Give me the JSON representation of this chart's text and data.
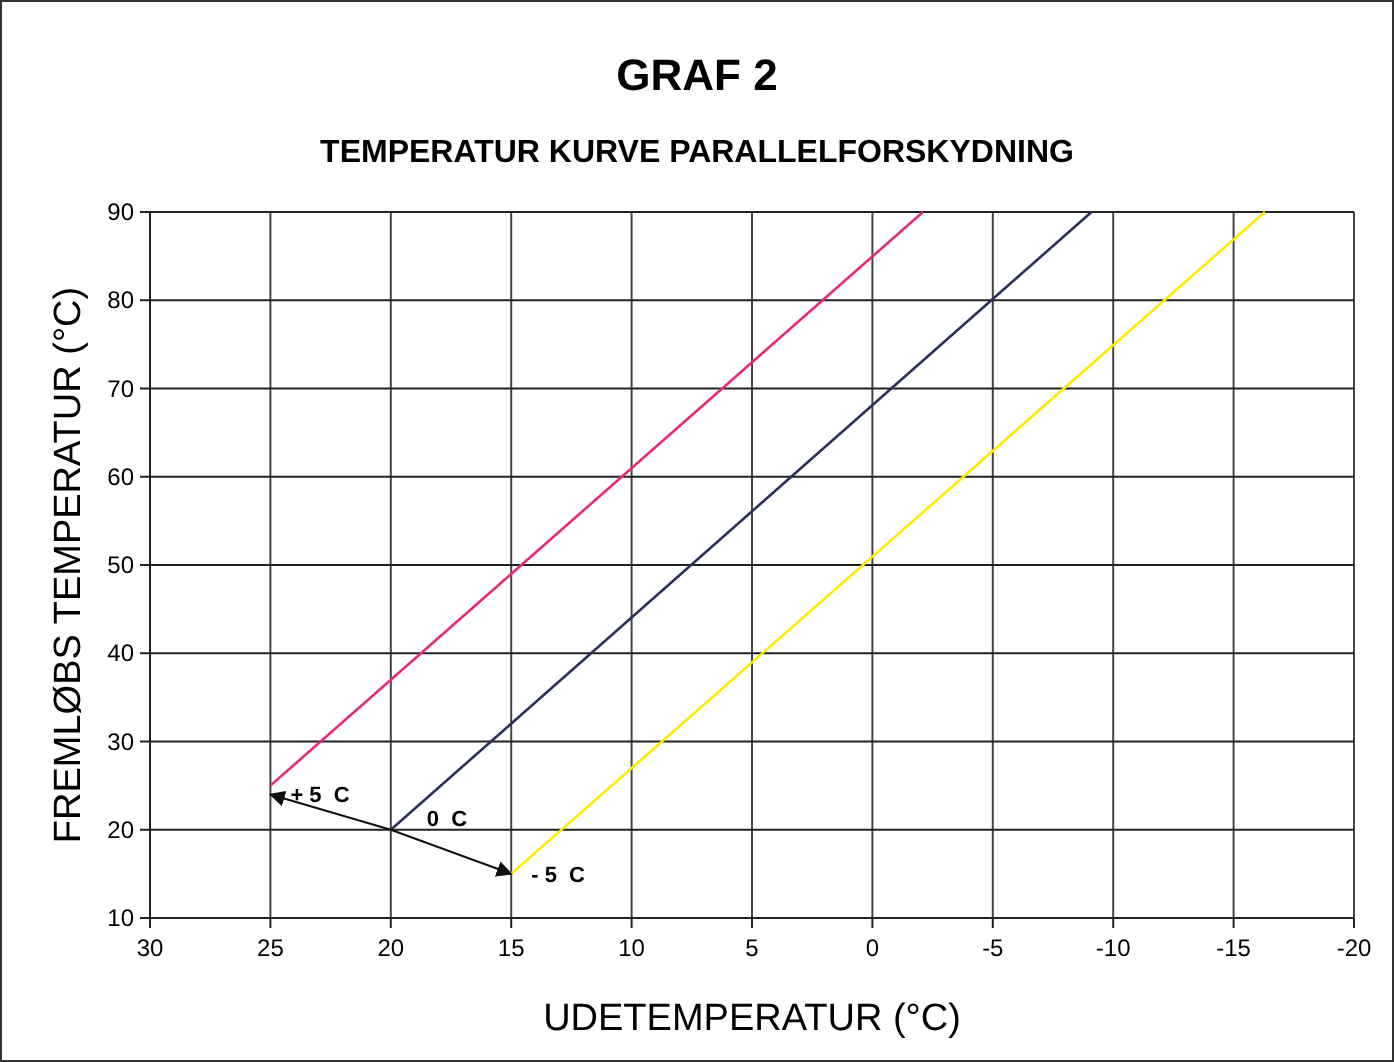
{
  "chart_data": {
    "type": "line",
    "title": "GRAF 2",
    "subtitle": "TEMPERATUR KURVE PARALLELFORSKYDNING",
    "xlabel": "UDETEMPERATUR (°C)",
    "ylabel": "FREMLØBS TEMPERATUR (°C)",
    "series": [
      {
        "color": "#e8297a",
        "x": [
          25,
          -2.1
        ],
        "values": [
          25,
          90
        ]
      },
      {
        "color": "#2b2f5c",
        "x": [
          20,
          -9.1
        ],
        "values": [
          20,
          90
        ]
      },
      {
        "color": "#ffea00",
        "x": [
          15,
          -16.3
        ],
        "values": [
          15,
          90
        ]
      }
    ],
    "xlim": [
      30,
      -20
    ],
    "xticks": [
      30,
      25,
      20,
      15,
      10,
      5,
      0,
      -5,
      -10,
      -15,
      -20
    ],
    "ylim": [
      10,
      90
    ],
    "yticks": [
      10,
      20,
      30,
      40,
      50,
      60,
      70,
      80,
      90
    ],
    "grid": true,
    "marker": "none",
    "line_style": "solid",
    "annotations": [
      {
        "text": "+ 5  C",
        "x": 25,
        "y": 24
      },
      {
        "text": "0  C",
        "x": 20,
        "y": 20
      },
      {
        "text": "- 5  C",
        "x": 15,
        "y": 15
      }
    ]
  }
}
